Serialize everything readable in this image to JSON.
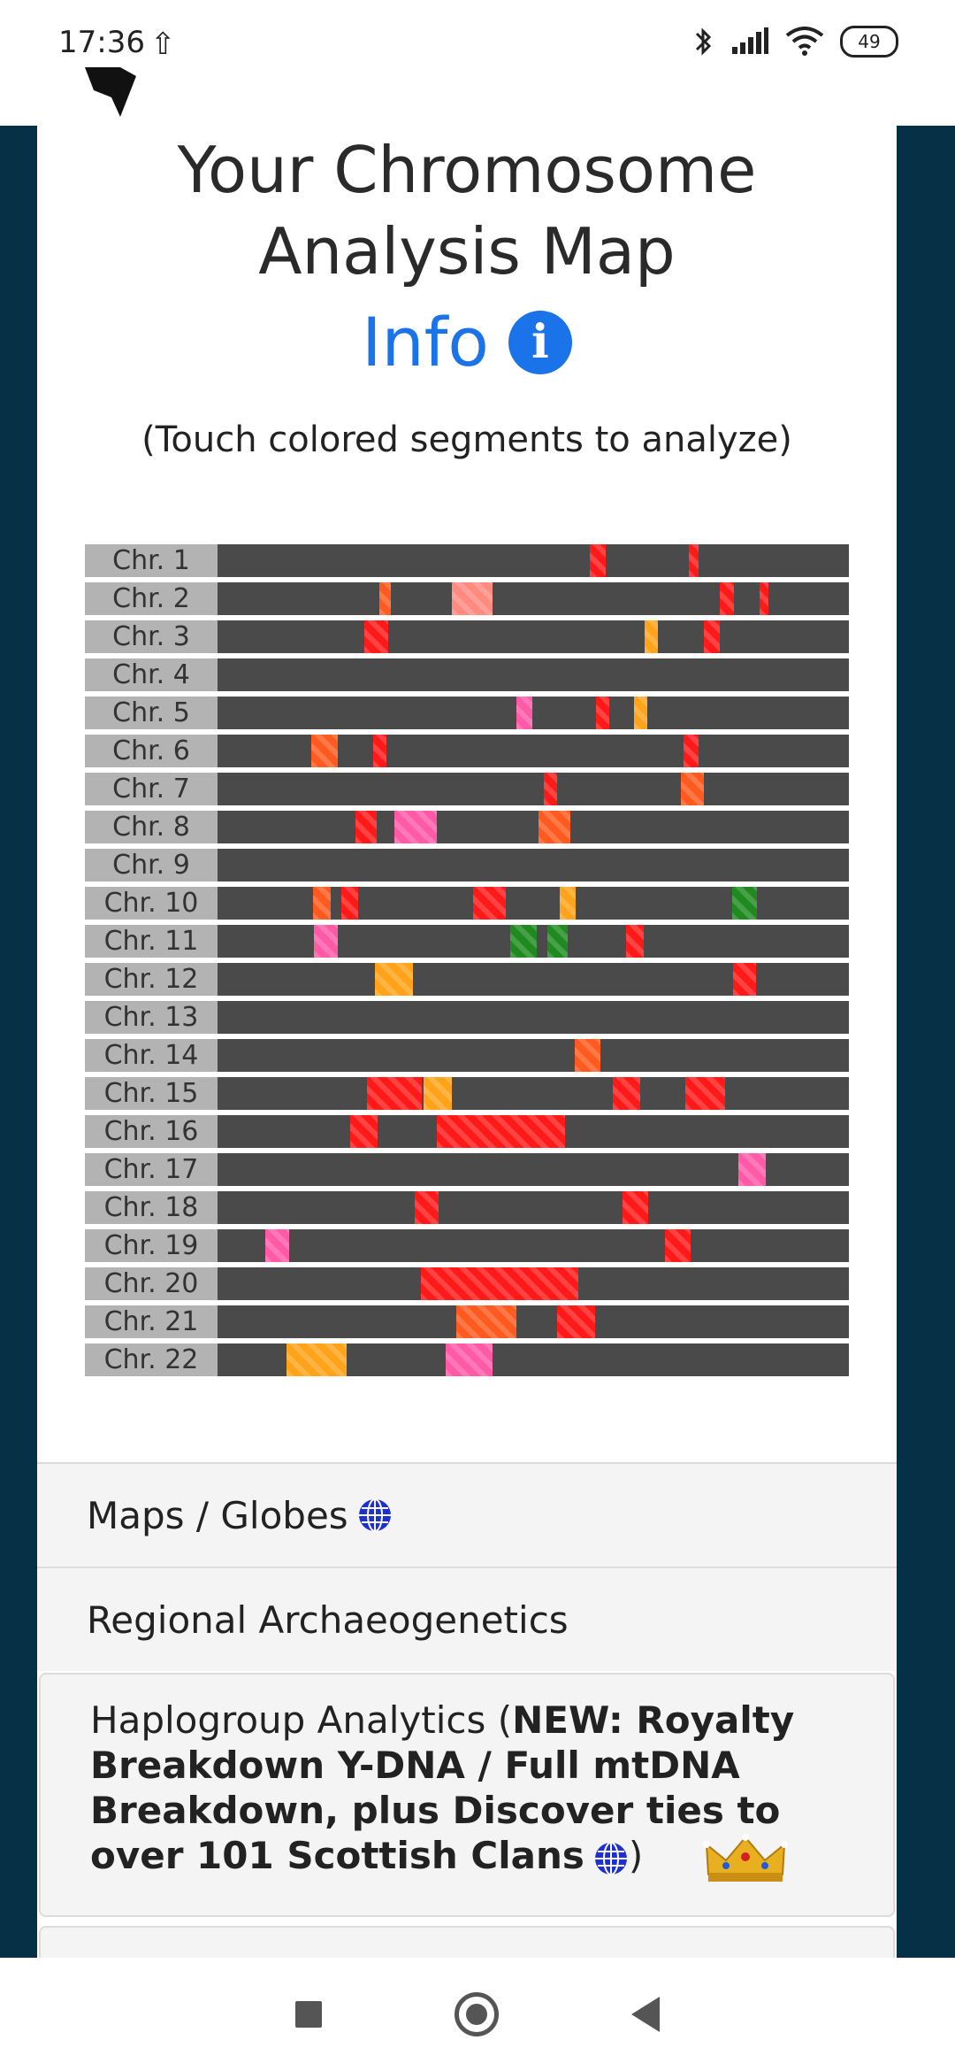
{
  "status": {
    "time": "17:36",
    "battery": "49"
  },
  "page": {
    "title_line1": "Your Chromosome",
    "title_line2": "Analysis Map",
    "info_label": "Info",
    "hint": "(Touch colored segments to analyze)"
  },
  "colors": {
    "red": "#ff1a1a",
    "orange": "#ff5a1f",
    "amber": "#ffa31a",
    "pink": "#ff5aa8",
    "salmon": "#ff8a80",
    "green": "#1f8a1f",
    "bar": "#4a4a4a",
    "label_bg": "#b3b3b3",
    "frame": "#063045",
    "accent": "#1a73e8"
  },
  "chromosomes": [
    {
      "label": "Chr. 1",
      "segments": [
        {
          "start": 0.59,
          "end": 0.615,
          "color": "red"
        },
        {
          "start": 0.746,
          "end": 0.762,
          "color": "red"
        }
      ]
    },
    {
      "label": "Chr. 2",
      "segments": [
        {
          "start": 0.256,
          "end": 0.274,
          "color": "orange"
        },
        {
          "start": 0.371,
          "end": 0.435,
          "color": "salmon"
        },
        {
          "start": 0.796,
          "end": 0.818,
          "color": "red"
        },
        {
          "start": 0.858,
          "end": 0.872,
          "color": "red"
        }
      ]
    },
    {
      "label": "Chr. 3",
      "segments": [
        {
          "start": 0.233,
          "end": 0.271,
          "color": "red"
        },
        {
          "start": 0.676,
          "end": 0.697,
          "color": "amber"
        },
        {
          "start": 0.771,
          "end": 0.795,
          "color": "red"
        }
      ]
    },
    {
      "label": "Chr. 4",
      "segments": []
    },
    {
      "label": "Chr. 5",
      "segments": [
        {
          "start": 0.474,
          "end": 0.499,
          "color": "pink"
        },
        {
          "start": 0.6,
          "end": 0.621,
          "color": "red"
        },
        {
          "start": 0.659,
          "end": 0.681,
          "color": "amber"
        }
      ]
    },
    {
      "label": "Chr. 6",
      "segments": [
        {
          "start": 0.148,
          "end": 0.19,
          "color": "orange"
        },
        {
          "start": 0.246,
          "end": 0.268,
          "color": "red"
        },
        {
          "start": 0.738,
          "end": 0.762,
          "color": "red"
        }
      ]
    },
    {
      "label": "Chr. 7",
      "segments": [
        {
          "start": 0.517,
          "end": 0.538,
          "color": "red"
        },
        {
          "start": 0.734,
          "end": 0.771,
          "color": "orange"
        }
      ]
    },
    {
      "label": "Chr. 8",
      "segments": [
        {
          "start": 0.219,
          "end": 0.252,
          "color": "red"
        },
        {
          "start": 0.28,
          "end": 0.348,
          "color": "pink"
        },
        {
          "start": 0.508,
          "end": 0.559,
          "color": "orange"
        }
      ]
    },
    {
      "label": "Chr. 9",
      "segments": []
    },
    {
      "label": "Chr. 10",
      "segments": [
        {
          "start": 0.151,
          "end": 0.179,
          "color": "orange"
        },
        {
          "start": 0.196,
          "end": 0.222,
          "color": "red"
        },
        {
          "start": 0.405,
          "end": 0.456,
          "color": "red"
        },
        {
          "start": 0.542,
          "end": 0.567,
          "color": "amber"
        },
        {
          "start": 0.815,
          "end": 0.854,
          "color": "green"
        }
      ]
    },
    {
      "label": "Chr. 11",
      "segments": [
        {
          "start": 0.152,
          "end": 0.19,
          "color": "pink"
        },
        {
          "start": 0.463,
          "end": 0.505,
          "color": "green"
        },
        {
          "start": 0.522,
          "end": 0.555,
          "color": "green"
        },
        {
          "start": 0.647,
          "end": 0.675,
          "color": "red"
        }
      ]
    },
    {
      "label": "Chr. 12",
      "segments": [
        {
          "start": 0.249,
          "end": 0.31,
          "color": "amber"
        },
        {
          "start": 0.816,
          "end": 0.853,
          "color": "red"
        }
      ]
    },
    {
      "label": "Chr. 13",
      "segments": []
    },
    {
      "label": "Chr. 14",
      "segments": [
        {
          "start": 0.566,
          "end": 0.606,
          "color": "orange"
        }
      ]
    },
    {
      "label": "Chr. 15",
      "segments": [
        {
          "start": 0.237,
          "end": 0.323,
          "color": "red"
        },
        {
          "start": 0.327,
          "end": 0.371,
          "color": "amber"
        },
        {
          "start": 0.626,
          "end": 0.669,
          "color": "red"
        },
        {
          "start": 0.741,
          "end": 0.804,
          "color": "red"
        }
      ]
    },
    {
      "label": "Chr. 16",
      "segments": [
        {
          "start": 0.21,
          "end": 0.253,
          "color": "red"
        },
        {
          "start": 0.347,
          "end": 0.551,
          "color": "red"
        }
      ]
    },
    {
      "label": "Chr. 17",
      "segments": [
        {
          "start": 0.825,
          "end": 0.869,
          "color": "pink"
        }
      ]
    },
    {
      "label": "Chr. 18",
      "segments": [
        {
          "start": 0.313,
          "end": 0.35,
          "color": "red"
        },
        {
          "start": 0.641,
          "end": 0.682,
          "color": "red"
        }
      ]
    },
    {
      "label": "Chr. 19",
      "segments": [
        {
          "start": 0.075,
          "end": 0.113,
          "color": "pink"
        },
        {
          "start": 0.709,
          "end": 0.75,
          "color": "red"
        }
      ]
    },
    {
      "label": "Chr. 20",
      "segments": [
        {
          "start": 0.322,
          "end": 0.571,
          "color": "red"
        }
      ]
    },
    {
      "label": "Chr. 21",
      "segments": [
        {
          "start": 0.378,
          "end": 0.473,
          "color": "orange"
        },
        {
          "start": 0.538,
          "end": 0.598,
          "color": "red"
        }
      ]
    },
    {
      "label": "Chr. 22",
      "segments": [
        {
          "start": 0.109,
          "end": 0.204,
          "color": "amber"
        },
        {
          "start": 0.361,
          "end": 0.435,
          "color": "pink"
        }
      ]
    }
  ],
  "menu": {
    "maps": "Maps / Globes",
    "archaeo": "Regional Archaeogenetics",
    "haplo_prefix": "Haplogroup Analytics (",
    "haplo_bold": "NEW: Royalty Breakdown Y-DNA / Full mtDNA Breakdown, plus Discover ties to over 101 Scottish Clans",
    "haplo_suffix": ")"
  },
  "icons": {
    "info": "info-icon",
    "globe": "globe-icon",
    "crown": "crown-icon",
    "bluetooth": "bluetooth-icon",
    "signal": "signal-icon",
    "wifi": "wifi-icon"
  }
}
